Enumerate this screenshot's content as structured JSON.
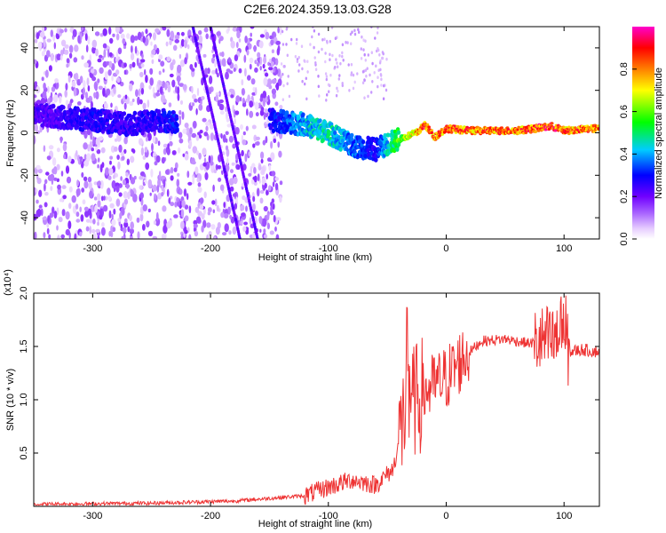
{
  "title": "C2E6.2024.359.13.03.G28",
  "chart_data": [
    {
      "type": "heatmap",
      "xlabel": "Height of straight line (km)",
      "ylabel": "Frequency (Hz)",
      "xlim": [
        -350,
        130
      ],
      "ylim": [
        -50,
        50
      ],
      "xticks": [
        -300,
        -200,
        -100,
        0,
        100
      ],
      "yticks": [
        -40,
        -20,
        0,
        20,
        40
      ],
      "colorbar": {
        "label": "Normalized spectral amplitude",
        "range": [
          0,
          1
        ],
        "ticks": [
          "0.0",
          "0.2",
          "0.4",
          "0.6",
          "0.8"
        ],
        "tick_values": [
          0.0,
          0.2,
          0.4,
          0.6,
          0.8
        ],
        "colors": [
          "#ffffff",
          "#e0c0ff",
          "#b070ff",
          "#7000ff",
          "#0000ff",
          "#00ffff",
          "#00ff00",
          "#ffff00",
          "#ff8000",
          "#ff0000",
          "#ff00ff"
        ]
      },
      "ridge": {
        "x": [
          -340,
          -300,
          -270,
          -240,
          -225,
          -150,
          -120,
          -100,
          -80,
          -60,
          -45,
          -35,
          -25,
          -18,
          -10,
          0,
          20,
          60,
          90,
          100,
          125
        ],
        "y": [
          8,
          6,
          4,
          6,
          4,
          6,
          4,
          0,
          -6,
          -8,
          -4,
          -2,
          0,
          4,
          -2,
          2,
          1,
          1,
          3,
          1,
          2
        ],
        "amplitude": [
          0.25,
          0.3,
          0.28,
          0.3,
          0.35,
          0.3,
          0.45,
          0.5,
          0.4,
          0.3,
          0.55,
          0.7,
          0.85,
          0.9,
          0.9,
          0.9,
          0.9,
          0.9,
          0.95,
          0.9,
          0.9
        ]
      }
    },
    {
      "type": "line",
      "xlabel": "Height of straight line (km)",
      "ylabel": "SNR (10 * v/v)",
      "scale_note": "(x10⁴)",
      "xlim": [
        -350,
        130
      ],
      "ylim": [
        0,
        20000
      ],
      "xticks": [
        -300,
        -200,
        -100,
        0,
        100
      ],
      "yticks": [
        5000,
        10000,
        15000,
        20000
      ],
      "ytick_labels": [
        "0.5",
        "1.0",
        "1.5",
        "2.0"
      ],
      "color": "#ee3333",
      "envelope": {
        "x": [
          -350,
          -250,
          -180,
          -120,
          -100,
          -80,
          -60,
          -45,
          -35,
          -25,
          -15,
          0,
          15,
          30,
          50,
          70,
          85,
          95,
          105,
          115,
          130
        ],
        "y": [
          200,
          300,
          500,
          1000,
          1800,
          2500,
          2000,
          3500,
          9000,
          10000,
          11000,
          12000,
          14000,
          15500,
          15700,
          15300,
          15500,
          15200,
          14500,
          14700,
          14500
        ]
      }
    }
  ]
}
